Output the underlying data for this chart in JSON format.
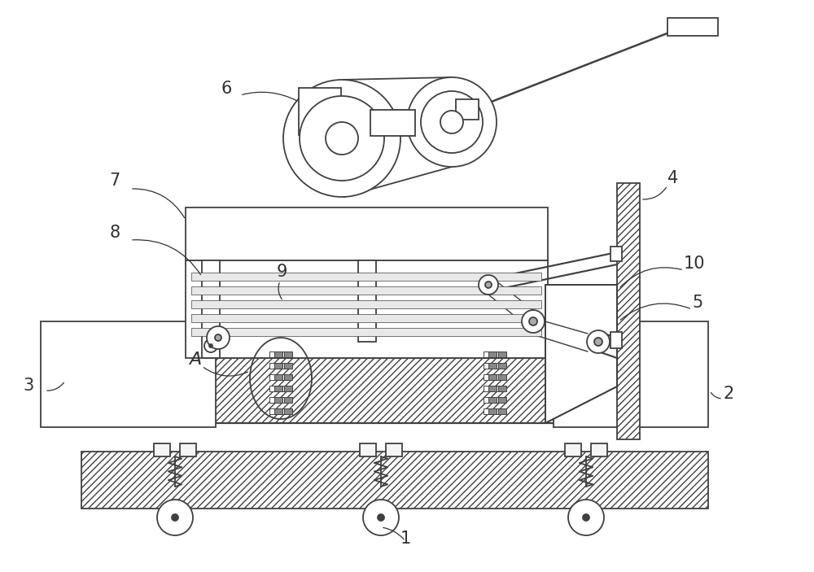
{
  "bg_color": "#ffffff",
  "line_color": "#404040",
  "label_color": "#303030",
  "figure_size": [
    10.0,
    7.03
  ],
  "dpi": 100
}
